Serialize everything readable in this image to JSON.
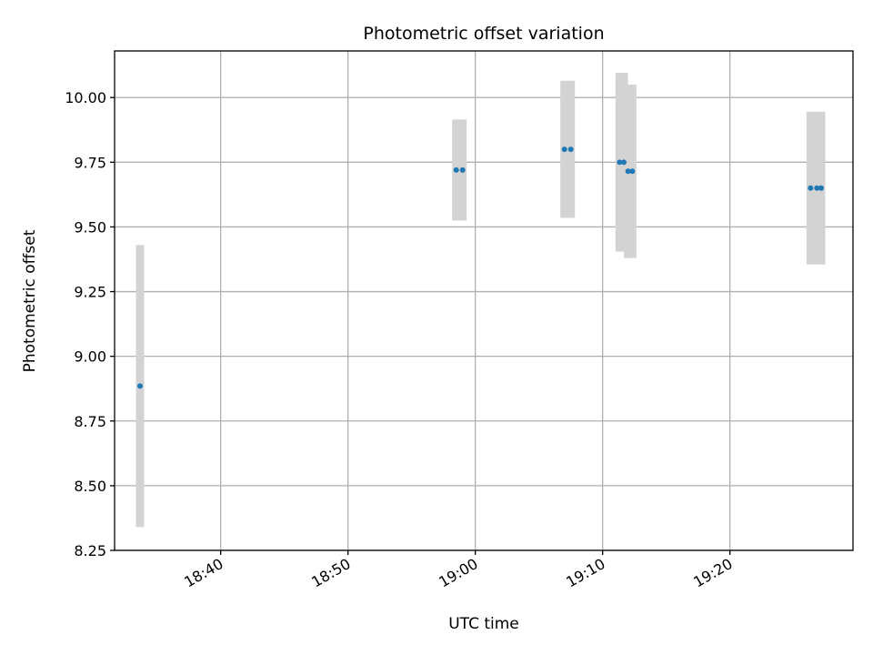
{
  "chart_data": {
    "type": "scatter",
    "title": "Photometric offset variation",
    "xlabel": "UTC time",
    "ylabel": "Photometric offset",
    "x_ticks": [
      "18:40",
      "18:50",
      "19:00",
      "19:10",
      "19:20"
    ],
    "y_ticks": [
      "8.25",
      "8.50",
      "8.75",
      "9.00",
      "9.25",
      "9.50",
      "9.75",
      "10.00"
    ],
    "xlim": [
      "18:31:40",
      "19:29:40"
    ],
    "ylim": [
      8.25,
      10.18
    ],
    "grid": true,
    "colors": {
      "point": "#1f77b4",
      "errorbar": "#d3d3d3"
    },
    "points": [
      {
        "x": "18:33:40",
        "y": 8.885,
        "err": 0.545
      },
      {
        "x": "18:58:30",
        "y": 9.72,
        "err": 0.195
      },
      {
        "x": "18:59:00",
        "y": 9.72,
        "err": 0.195
      },
      {
        "x": "19:07:00",
        "y": 9.8,
        "err": 0.265
      },
      {
        "x": "19:07:30",
        "y": 9.8,
        "err": 0.265
      },
      {
        "x": "19:11:20",
        "y": 9.75,
        "err": 0.345
      },
      {
        "x": "19:11:40",
        "y": 9.75,
        "err": 0.345
      },
      {
        "x": "19:12:00",
        "y": 9.715,
        "err": 0.335
      },
      {
        "x": "19:12:20",
        "y": 9.715,
        "err": 0.335
      },
      {
        "x": "19:26:20",
        "y": 9.65,
        "err": 0.295
      },
      {
        "x": "19:26:50",
        "y": 9.65,
        "err": 0.295
      },
      {
        "x": "19:27:10",
        "y": 9.65,
        "err": 0.295
      }
    ]
  }
}
